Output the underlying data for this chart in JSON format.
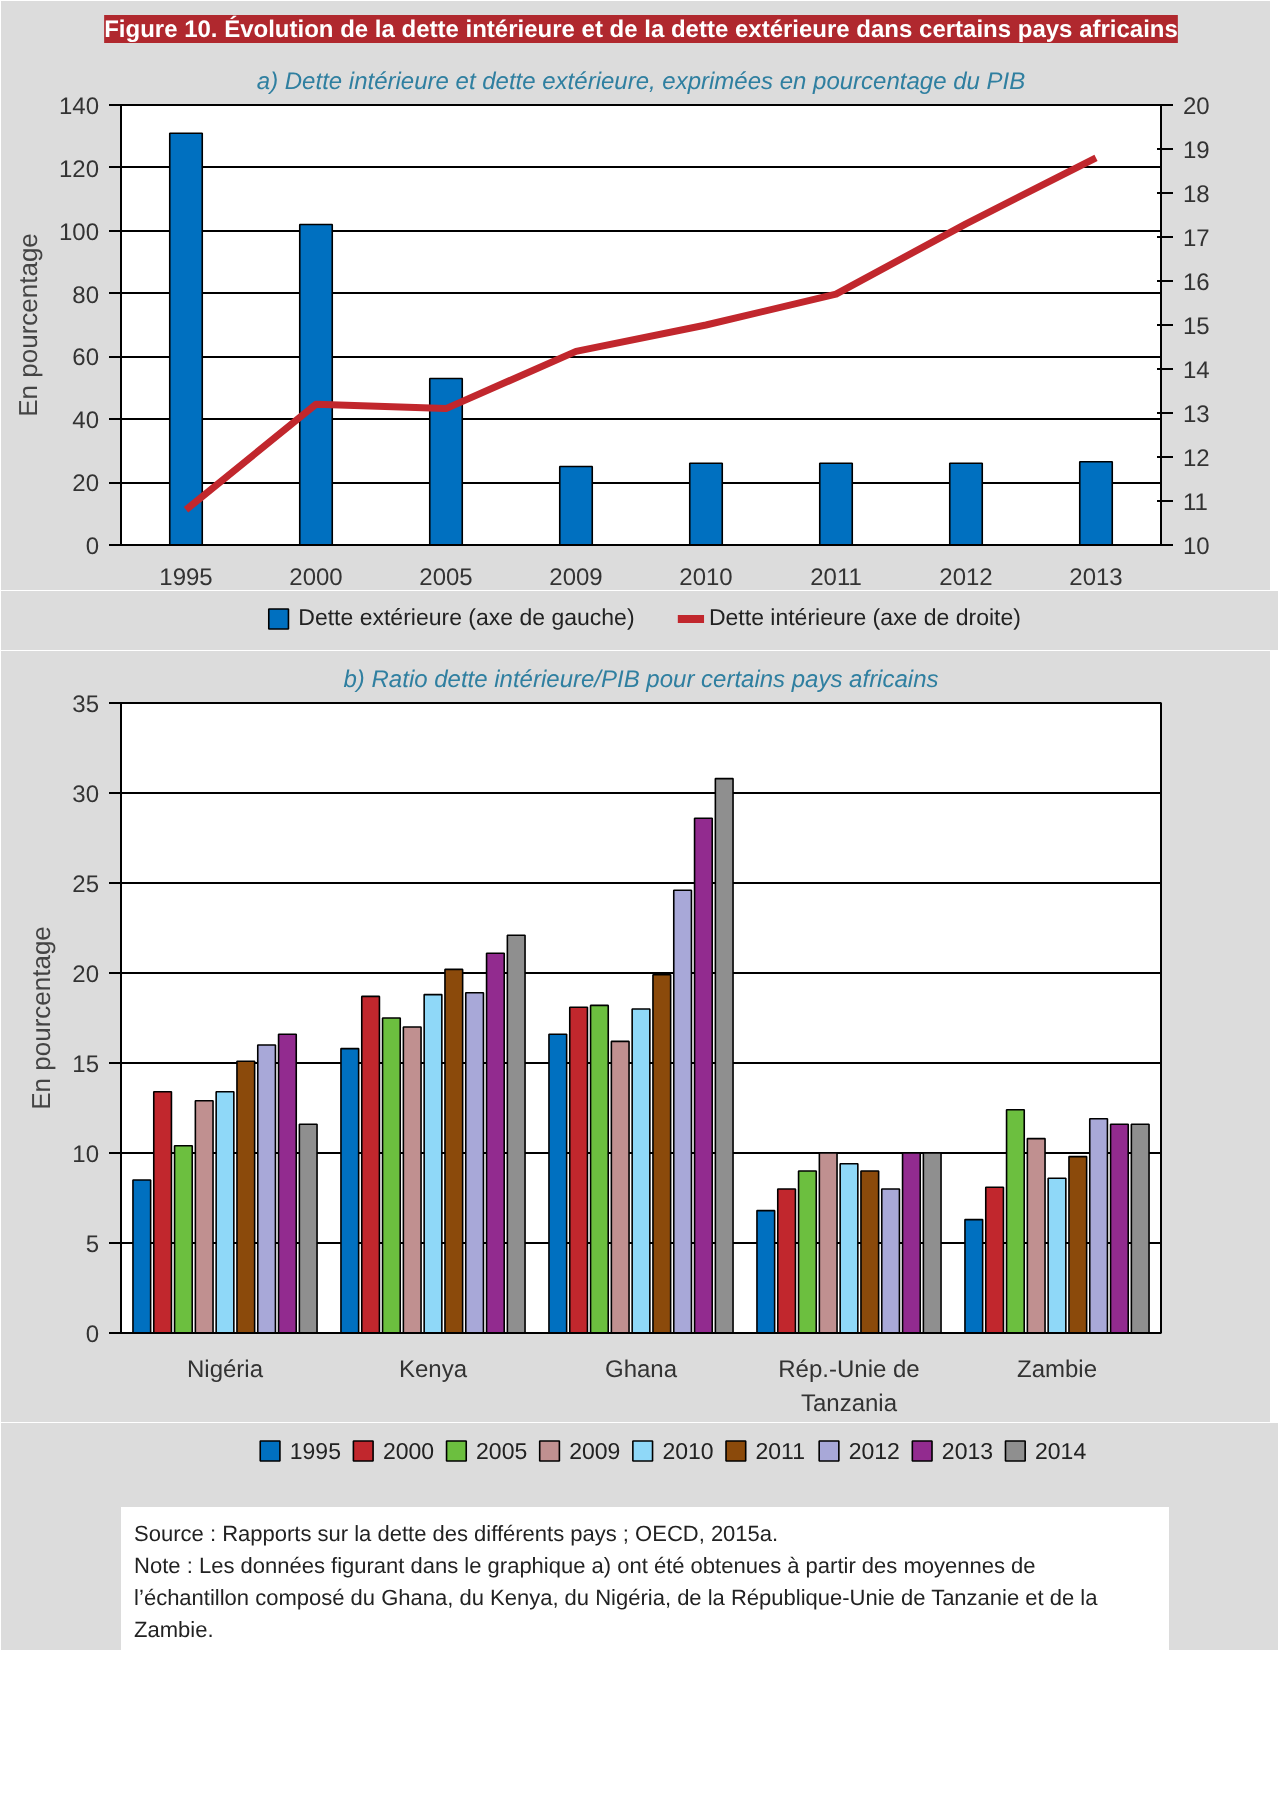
{
  "chart_data": [
    {
      "type": "bar",
      "title": "Figure 10. Évolution de la dette intérieure et de la dette extérieure dans certains pays africains",
      "subtitle": "a) Dette intérieure et dette extérieure, exprimées en pourcentage du PIB",
      "ylabel": "En pourcentage",
      "categories": [
        "1995",
        "2000",
        "2005",
        "2009",
        "2010",
        "2011",
        "2012",
        "2013"
      ],
      "series": [
        {
          "name": "Dette extérieure (axe de gauche)",
          "type": "bar",
          "color": "#0070c0",
          "values": [
            131,
            102,
            53,
            25,
            26,
            26,
            26,
            26.5
          ]
        },
        {
          "name": "Dette intérieure (axe de droite)",
          "type": "line",
          "axis": "y2",
          "color": "#c1272d",
          "values": [
            10.8,
            13.2,
            13.1,
            14.4,
            15.0,
            15.7,
            17.3,
            18.8
          ]
        }
      ],
      "ylim": [
        0,
        140
      ],
      "yticks": [
        0,
        20,
        40,
        60,
        80,
        100,
        120,
        140
      ],
      "y2lim": [
        10,
        20
      ],
      "y2ticks": [
        10,
        11,
        12,
        13,
        14,
        15,
        16,
        17,
        18,
        19,
        20
      ],
      "grid": "y",
      "legend": "bottom"
    },
    {
      "type": "bar",
      "title": "b) Ratio dette intérieure/PIB pour certains pays africains",
      "ylabel": "En pourcentage",
      "categories": [
        "Nigéria",
        "Kenya",
        "Ghana",
        "Rép.-Unie de Tanzania",
        "Zambie"
      ],
      "series": [
        {
          "name": "1995",
          "color": "#0070c0",
          "values": [
            8.5,
            15.8,
            16.6,
            6.8,
            6.3
          ]
        },
        {
          "name": "2000",
          "color": "#c1272d",
          "values": [
            13.4,
            18.7,
            18.1,
            8.0,
            8.1
          ]
        },
        {
          "name": "2005",
          "color": "#6cbf3f",
          "values": [
            10.4,
            17.5,
            18.2,
            9.0,
            12.4
          ]
        },
        {
          "name": "2009",
          "color": "#c09090",
          "values": [
            12.9,
            17.0,
            16.2,
            10.0,
            10.8
          ]
        },
        {
          "name": "2010",
          "color": "#8fd8f8",
          "values": [
            13.4,
            18.8,
            18.0,
            9.4,
            8.6
          ]
        },
        {
          "name": "2011",
          "color": "#8b4a0b",
          "values": [
            15.1,
            20.2,
            19.9,
            9.0,
            9.8
          ]
        },
        {
          "name": "2012",
          "color": "#a8a8d8",
          "values": [
            16.0,
            18.9,
            24.6,
            8.0,
            11.9
          ]
        },
        {
          "name": "2013",
          "color": "#922b8f",
          "values": [
            16.6,
            21.1,
            28.6,
            10.0,
            11.6
          ]
        },
        {
          "name": "2014",
          "color": "#8f8f8f",
          "values": [
            11.6,
            22.1,
            30.8,
            10.0,
            11.6
          ]
        }
      ],
      "ylim": [
        0,
        35
      ],
      "yticks": [
        0,
        5,
        10,
        15,
        20,
        25,
        30,
        35
      ],
      "grid": "y",
      "legend": "bottom",
      "annotations": [
        "Source : Rapports sur la dette des différents pays ; OECD, 2015a.",
        "Note : Les données figurant dans le graphique a) ont été obtenues à partir des moyennes de l’échantillon composé du Ghana, du Kenya, du Nigéria, de la République-Unie de Tanzanie et de la Zambie."
      ]
    }
  ]
}
